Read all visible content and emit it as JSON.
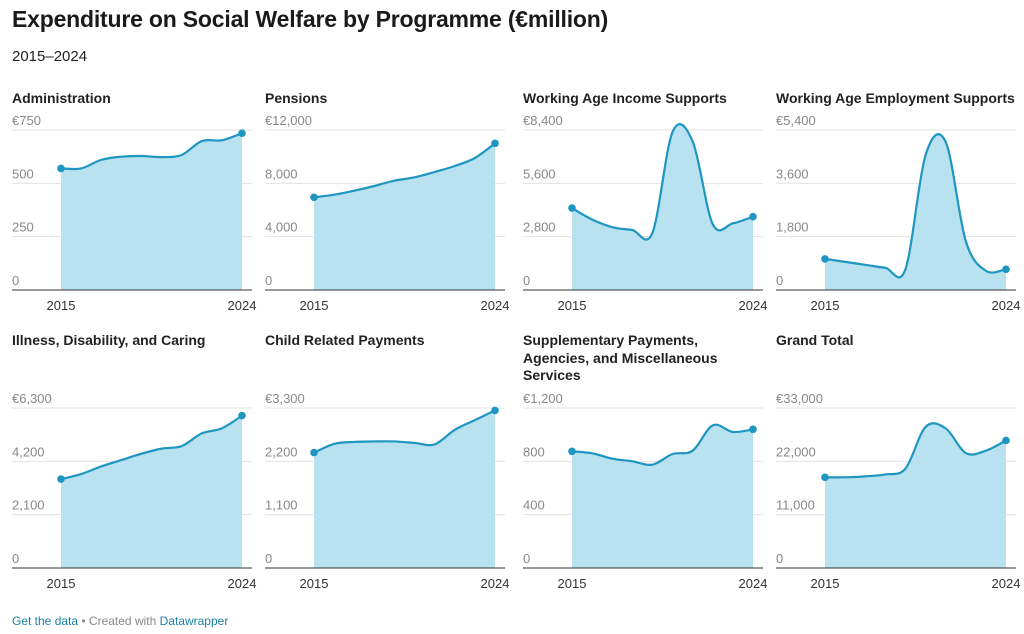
{
  "title": "Expenditure on Social Welfare by Programme (€million)",
  "subtitle": "2015–2024",
  "footer": {
    "get_data": "Get the data",
    "separator": " • Created with ",
    "tool": "Datawrapper"
  },
  "colors": {
    "line": "#1e96c1",
    "area": "#b9e2f0",
    "grid": "#e3e3e3",
    "baseline": "#333333",
    "tick_text": "#888888",
    "link": "#1d81a2"
  },
  "chart_data": [
    {
      "type": "area",
      "title": "Administration",
      "x": [
        2015,
        2016,
        2017,
        2018,
        2019,
        2020,
        2021,
        2022,
        2023,
        2024
      ],
      "values": [
        570,
        570,
        610,
        625,
        628,
        623,
        633,
        698,
        702,
        735
      ],
      "ylim": [
        0,
        750
      ],
      "y_ticks": [
        "€750",
        "500",
        "250",
        "0"
      ],
      "x_ticks": [
        "2015",
        "2024"
      ]
    },
    {
      "type": "area",
      "title": "Pensions",
      "x": [
        2015,
        2016,
        2017,
        2018,
        2019,
        2020,
        2021,
        2022,
        2023,
        2024
      ],
      "values": [
        6950,
        7150,
        7450,
        7800,
        8200,
        8450,
        8850,
        9300,
        9900,
        11000
      ],
      "ylim": [
        0,
        12000
      ],
      "y_ticks": [
        "€12,000",
        "8,000",
        "4,000",
        "0"
      ],
      "x_ticks": [
        "2015",
        "2024"
      ]
    },
    {
      "type": "area",
      "title": "Working Age Income Supports",
      "x": [
        2015,
        2016,
        2017,
        2018,
        2019,
        2020,
        2021,
        2022,
        2023,
        2024
      ],
      "values": [
        4300,
        3700,
        3300,
        3150,
        3000,
        8300,
        7800,
        3450,
        3500,
        3850
      ],
      "ylim": [
        0,
        8400
      ],
      "y_ticks": [
        "€8,400",
        "5,600",
        "2,800",
        "0"
      ],
      "x_ticks": [
        "2015",
        "2024"
      ]
    },
    {
      "type": "area",
      "title": "Working Age Employment Supports",
      "x": [
        2015,
        2016,
        2017,
        2018,
        2019,
        2020,
        2021,
        2022,
        2023,
        2024
      ],
      "values": [
        1050,
        950,
        850,
        750,
        700,
        4550,
        5000,
        1650,
        650,
        700
      ],
      "ylim": [
        0,
        5400
      ],
      "y_ticks": [
        "€5,400",
        "3,600",
        "1,800",
        "0"
      ],
      "x_ticks": [
        "2015",
        "2024"
      ]
    },
    {
      "type": "area",
      "title": "Illness, Disability, and Caring",
      "x": [
        2015,
        2016,
        2017,
        2018,
        2019,
        2020,
        2021,
        2022,
        2023,
        2024
      ],
      "values": [
        3500,
        3700,
        4000,
        4250,
        4500,
        4700,
        4800,
        5300,
        5500,
        6000
      ],
      "ylim": [
        0,
        6300
      ],
      "y_ticks": [
        "€6,300",
        "4,200",
        "2,100",
        "0"
      ],
      "x_ticks": [
        "2015",
        "2024"
      ]
    },
    {
      "type": "area",
      "title": "Child Related Payments",
      "x": [
        2015,
        2016,
        2017,
        2018,
        2019,
        2020,
        2021,
        2022,
        2023,
        2024
      ],
      "values": [
        2380,
        2560,
        2600,
        2610,
        2610,
        2580,
        2550,
        2850,
        3050,
        3250
      ],
      "ylim": [
        0,
        3300
      ],
      "y_ticks": [
        "€3,300",
        "2,200",
        "1,100",
        "0"
      ],
      "x_ticks": [
        "2015",
        "2024"
      ]
    },
    {
      "type": "area",
      "title": "Supplementary Payments, Agencies, and Miscellaneous Services",
      "x": [
        2015,
        2016,
        2017,
        2018,
        2019,
        2020,
        2021,
        2022,
        2023,
        2024
      ],
      "values": [
        875,
        860,
        820,
        800,
        775,
        855,
        880,
        1070,
        1020,
        1040
      ],
      "ylim": [
        0,
        1200
      ],
      "y_ticks": [
        "€1,200",
        "800",
        "400",
        "0"
      ],
      "x_ticks": [
        "2015",
        "2024"
      ]
    },
    {
      "type": "area",
      "title": "Grand Total",
      "x": [
        2015,
        2016,
        2017,
        2018,
        2019,
        2020,
        2021,
        2022,
        2023,
        2024
      ],
      "values": [
        18700,
        18700,
        18900,
        19300,
        20500,
        29100,
        28800,
        23700,
        24200,
        26300
      ],
      "ylim": [
        0,
        33000
      ],
      "y_ticks": [
        "€33,000",
        "22,000",
        "11,000",
        "0"
      ],
      "x_ticks": [
        "2015",
        "2024"
      ]
    }
  ]
}
